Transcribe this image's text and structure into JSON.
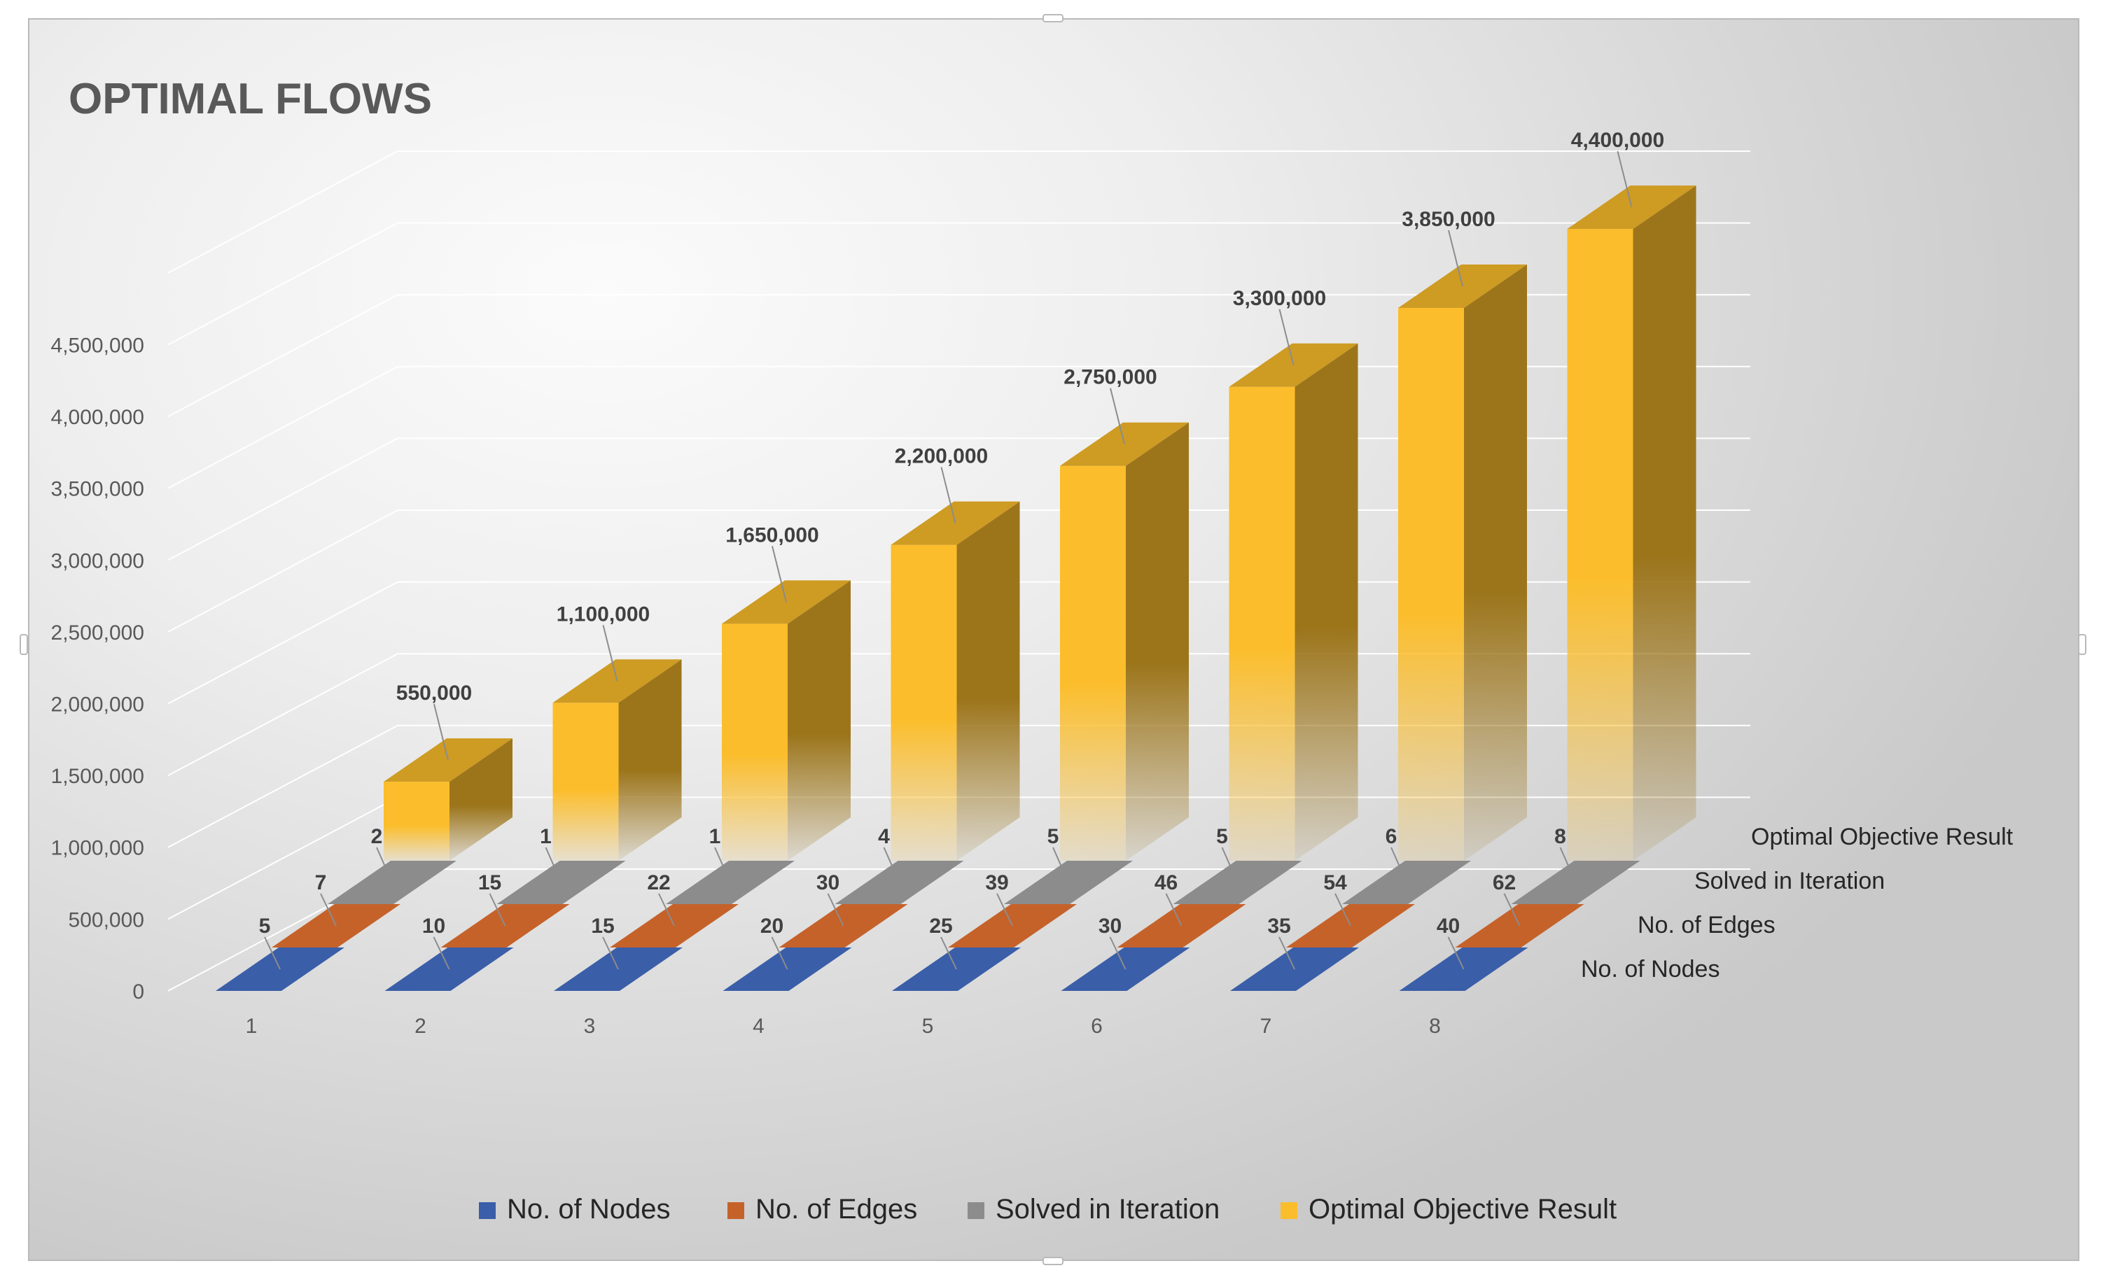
{
  "chart_data": {
    "type": "bar",
    "subtype": "3d-column",
    "title": "OPTIMAL FLOWS",
    "categories": [
      "1",
      "2",
      "3",
      "4",
      "5",
      "6",
      "7",
      "8"
    ],
    "series": [
      {
        "name": "No. of Nodes",
        "color": "#3a5ea8",
        "values": [
          5,
          10,
          15,
          20,
          25,
          30,
          35,
          40
        ]
      },
      {
        "name": "No. of Edges",
        "color": "#c5622a",
        "values": [
          7,
          15,
          22,
          30,
          39,
          46,
          54,
          62
        ]
      },
      {
        "name": "Solved in Iteration",
        "color": "#8c8c8c",
        "values": [
          2,
          1,
          1,
          4,
          5,
          5,
          6,
          8
        ]
      },
      {
        "name": "Optimal Objective Result",
        "color": "#fbbd2b",
        "values": [
          550000,
          1100000,
          1650000,
          2200000,
          2750000,
          3300000,
          3850000,
          4400000
        ]
      }
    ],
    "value_labels": {
      "No. of Nodes": [
        "5",
        "10",
        "15",
        "20",
        "25",
        "30",
        "35",
        "40"
      ],
      "No. of Edges": [
        "7",
        "15",
        "22",
        "30",
        "39",
        "46",
        "54",
        "62"
      ],
      "Solved in Iteration": [
        "2",
        "1",
        "1",
        "4",
        "5",
        "5",
        "6",
        "8"
      ],
      "Optimal Objective Result": [
        "550,000",
        "1,100,000",
        "1,650,000",
        "2,200,000",
        "2,750,000",
        "3,300,000",
        "3,850,000",
        "4,400,000"
      ]
    },
    "y_ticks": [
      0,
      500000,
      1000000,
      1500000,
      2000000,
      2500000,
      3000000,
      3500000,
      4000000,
      4500000
    ],
    "y_tick_labels": [
      "0",
      "500,000",
      "1,000,000",
      "1,500,000",
      "2,000,000",
      "2,500,000",
      "3,000,000",
      "3,500,000",
      "4,000,000",
      "4,500,000"
    ],
    "ylim": [
      0,
      5000000
    ],
    "xlabel": "",
    "ylabel": "",
    "grid": true,
    "legend_position": "bottom"
  }
}
